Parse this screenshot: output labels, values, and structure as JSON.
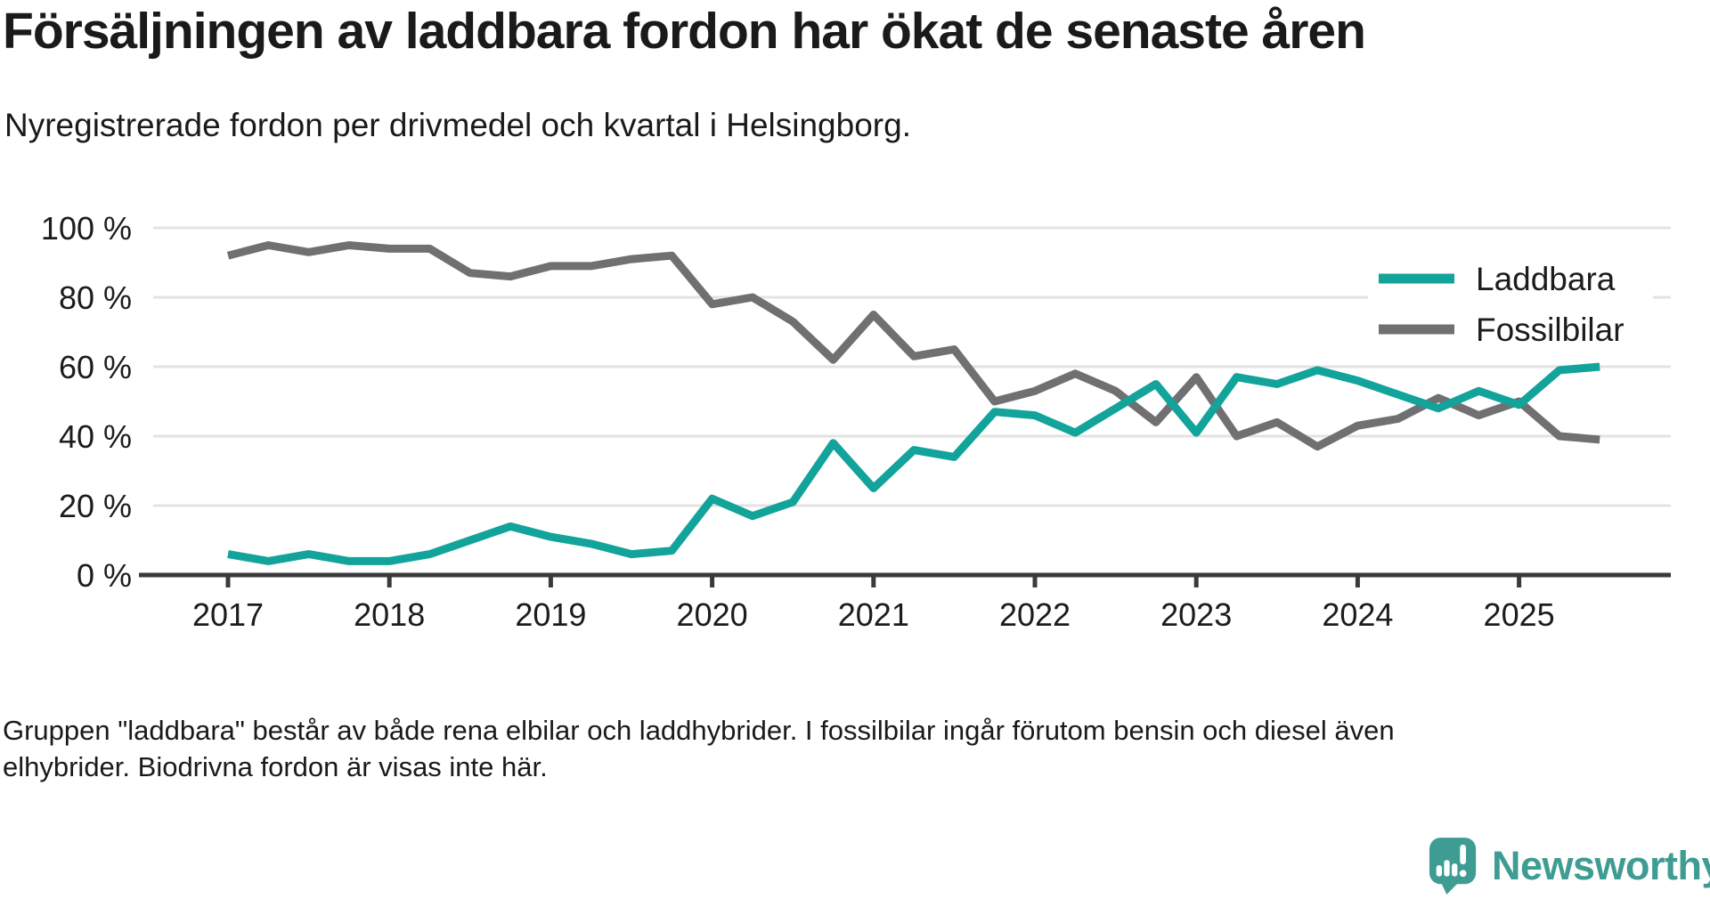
{
  "header": {
    "title": "Försäljningen av laddbara fordon har ökat de senaste åren",
    "subtitle": "Nyregistrerade fordon per drivmedel och kvartal i Helsingborg."
  },
  "chart_data": {
    "type": "line",
    "title": "Försäljningen av laddbara fordon har ökat de senaste åren",
    "subtitle": "Nyregistrerade fordon per drivmedel och kvartal i Helsingborg.",
    "x_start": "2017 Q1",
    "x_frequency": "quarterly",
    "x_tick_labels": [
      "2017",
      "2018",
      "2019",
      "2020",
      "2021",
      "2022",
      "2023",
      "2024",
      "2025"
    ],
    "y_tick_labels": [
      "100 %",
      "80 %",
      "60 %",
      "40 %",
      "20 %",
      "0 %"
    ],
    "y_tick_values": [
      100,
      80,
      60,
      40,
      20,
      0
    ],
    "ylim": [
      0,
      100
    ],
    "grid": "horizontal",
    "legend_position": "inside-top-right",
    "series": [
      {
        "name": "Laddbara",
        "color": "#12A39A",
        "values": [
          6,
          4,
          6,
          4,
          4,
          6,
          10,
          14,
          11,
          9,
          6,
          7,
          22,
          17,
          21,
          38,
          25,
          36,
          34,
          47,
          46,
          41,
          48,
          55,
          41,
          57,
          55,
          59,
          56,
          52,
          48,
          53,
          49,
          59,
          60
        ]
      },
      {
        "name": "Fossilbilar",
        "color": "#707073",
        "values": [
          92,
          95,
          93,
          95,
          94,
          94,
          87,
          86,
          89,
          89,
          91,
          92,
          78,
          80,
          73,
          62,
          75,
          63,
          65,
          50,
          53,
          58,
          53,
          44,
          57,
          40,
          44,
          37,
          43,
          45,
          51,
          46,
          50,
          40,
          39
        ]
      }
    ]
  },
  "footer": {
    "note_line1": "Gruppen \"laddbara\" består av både rena elbilar och laddhybrider. I fossilbilar ingår förutom bensin och diesel även",
    "note_line2": "elhybrider. Biodrivna fordon är visas inte här.",
    "logo_text": "Newsworthy"
  },
  "colors": {
    "background": "#FFFFFF",
    "axis": "#3A3A3A",
    "grid": "#E3E3E3",
    "text": "#1C1C1C",
    "logo": "#3E9C93"
  }
}
